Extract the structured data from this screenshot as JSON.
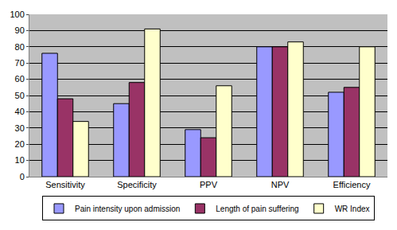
{
  "chart_data": {
    "type": "bar",
    "categories": [
      "Sensitivity",
      "Specificity",
      "PPV",
      "NPV",
      "Efficiency"
    ],
    "series": [
      {
        "name": "Pain intensity upon admission",
        "color": "#9999ff",
        "values": [
          76,
          45,
          29,
          80,
          52
        ]
      },
      {
        "name": "Length of pain suffering",
        "color": "#993366",
        "values": [
          48,
          58,
          24,
          80,
          55
        ]
      },
      {
        "name": "WR Index",
        "color": "#ffffcc",
        "values": [
          34,
          91,
          56,
          83,
          80
        ]
      }
    ],
    "ylim": [
      0,
      100
    ],
    "yticks": [
      0,
      10,
      20,
      30,
      40,
      50,
      60,
      70,
      80,
      90,
      100
    ],
    "grid": true,
    "legend": "bottom"
  }
}
